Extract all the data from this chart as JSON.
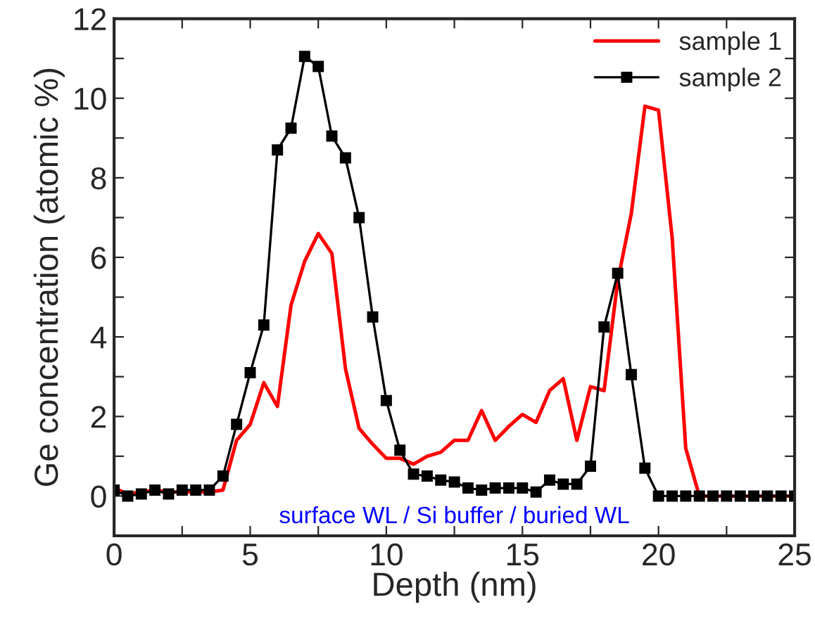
{
  "chart_data": {
    "type": "line",
    "xlabel": "Depth (nm)",
    "ylabel": "Ge concentration (atomic %)",
    "x": [
      0,
      0.5,
      1,
      1.5,
      2,
      2.5,
      3,
      3.5,
      4,
      4.5,
      5,
      5.5,
      6,
      6.5,
      7,
      7.5,
      8,
      8.5,
      9,
      9.5,
      10,
      10.5,
      11,
      11.5,
      12,
      12.5,
      13,
      13.5,
      14,
      14.5,
      15,
      15.5,
      16,
      16.5,
      17,
      17.5,
      18,
      18.5,
      19,
      19.5,
      20,
      20.5,
      21,
      21.5,
      22,
      22.5,
      23,
      23.5,
      24,
      24.5,
      25
    ],
    "series": [
      {
        "name": "sample 1",
        "color": "#ff0000",
        "marker": "none",
        "values": [
          0.2,
          0.05,
          0.1,
          0.15,
          0.1,
          0.1,
          0.1,
          0.1,
          0.15,
          1.4,
          1.8,
          2.85,
          2.25,
          4.8,
          5.9,
          6.6,
          6.1,
          3.2,
          1.7,
          1.3,
          0.95,
          0.95,
          0.8,
          1.0,
          1.1,
          1.4,
          1.4,
          2.15,
          1.4,
          1.75,
          2.05,
          1.85,
          2.65,
          2.95,
          1.4,
          2.75,
          2.65,
          5.4,
          7.1,
          9.8,
          9.7,
          6.5,
          1.2,
          0.0,
          0.0,
          0.0,
          0.0,
          0.0,
          0.0,
          0.0,
          0.0
        ]
      },
      {
        "name": "sample 2",
        "color": "#000000",
        "marker": "square",
        "values": [
          0.15,
          0.0,
          0.05,
          0.15,
          0.05,
          0.15,
          0.15,
          0.15,
          0.5,
          1.8,
          3.1,
          4.3,
          8.7,
          9.25,
          11.05,
          10.8,
          9.05,
          8.5,
          7.0,
          4.5,
          2.4,
          1.15,
          0.55,
          0.5,
          0.4,
          0.35,
          0.2,
          0.15,
          0.2,
          0.2,
          0.2,
          0.1,
          0.4,
          0.3,
          0.3,
          0.75,
          4.25,
          5.6,
          3.05,
          0.7,
          0.0,
          0.0,
          0.0,
          0.0,
          0.0,
          0.0,
          0.0,
          0.0,
          0.0,
          0.0,
          0.0
        ]
      }
    ],
    "xlim": [
      0,
      25
    ],
    "xticks": [
      0,
      {
        "value": 2.5,
        "label": null
      },
      5,
      {
        "value": 7.5,
        "label": null
      },
      10,
      {
        "value": 12.5,
        "label": null
      },
      15,
      {
        "value": 17.5,
        "label": null
      },
      20,
      {
        "value": 22.5,
        "label": null
      },
      25
    ],
    "ylim": [
      -1,
      12
    ],
    "yticks": [
      0,
      {
        "value": 1,
        "label": null
      },
      2,
      {
        "value": 3,
        "label": null
      },
      4,
      {
        "value": 5,
        "label": null
      },
      6,
      {
        "value": 7,
        "label": null
      },
      8,
      {
        "value": 9,
        "label": null
      },
      10,
      {
        "value": 11,
        "label": null
      },
      12
    ],
    "annotations": [
      "surface WL / Si buffer / buried WL"
    ],
    "legend": "top right",
    "grid": false,
    "line_style": "solid"
  }
}
